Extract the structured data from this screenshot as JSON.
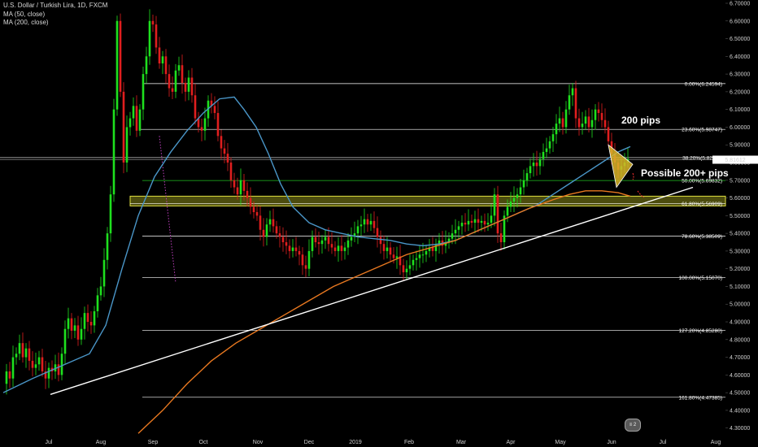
{
  "legend": {
    "title": "U.S. Dollar / Turkish Lira, 1D, FXCM",
    "ma50": "MA (50, close)",
    "ma200": "MA (200, close)"
  },
  "colors": {
    "background": "#000000",
    "up_candle": "#1ee01e",
    "down_candle": "#e01e1e",
    "ma50": "#4a96c8",
    "ma200": "#e87820",
    "trendline": "#ffffff",
    "fib_line": "#ffffff",
    "zone_fill": "#8a8a1a",
    "zone_border": "#e0e040",
    "green_line": "#20c020",
    "triangle_fill": "#d8b428",
    "price_label_bg": "#ffffff"
  },
  "chart_data": {
    "type": "candlestick",
    "title": "U.S. Dollar / Turkish Lira, 1D, FXCM",
    "x_ticks": [
      "Jul",
      "Aug",
      "Sep",
      "Oct",
      "Nov",
      "Dec",
      "2019",
      "Feb",
      "Mar",
      "Apr",
      "May",
      "Jun",
      "Jul",
      "Aug"
    ],
    "y_ticks": [
      "6.70000",
      "6.60000",
      "6.50000",
      "6.40000",
      "6.30000",
      "6.20000",
      "6.10000",
      "6.00000",
      "5.90000",
      "5.80000",
      "5.70000",
      "5.60000",
      "5.50000",
      "5.40000",
      "5.30000",
      "5.20000",
      "5.10000",
      "5.00000",
      "4.90000",
      "4.80000",
      "4.70000",
      "4.60000",
      "4.50000",
      "4.40000",
      "4.30000"
    ],
    "ylim": [
      4.27,
      6.73
    ],
    "current_price": "5.81612",
    "current_price_label": "5.81612",
    "fib_levels": [
      {
        "label": "0.00%(6.24594)",
        "value": 6.24594
      },
      {
        "label": "23.60%(5.98747)",
        "value": 5.98747
      },
      {
        "label": "38.20%(5.82",
        "value": 5.828
      },
      {
        "label": "50.00%(5.69832)",
        "value": 5.69832
      },
      {
        "label": "61.80%(5.56909)",
        "value": 5.56909
      },
      {
        "label": "78.60%(5.38509)",
        "value": 5.38509
      },
      {
        "label": "100.00%(5.15070)",
        "value": 5.1507
      },
      {
        "label": "127.20%(4.85280)",
        "value": 4.8528
      },
      {
        "label": "161.80%(4.47385)",
        "value": 4.47385
      }
    ],
    "zone": {
      "low": 5.555,
      "high": 5.61
    },
    "annotations": [
      {
        "text": "200 pips"
      },
      {
        "text": "Possible 200+ pips"
      }
    ],
    "series": [
      {
        "name": "MA (50, close)"
      },
      {
        "name": "MA (200, close)"
      }
    ]
  },
  "watermark": "≡ 2"
}
